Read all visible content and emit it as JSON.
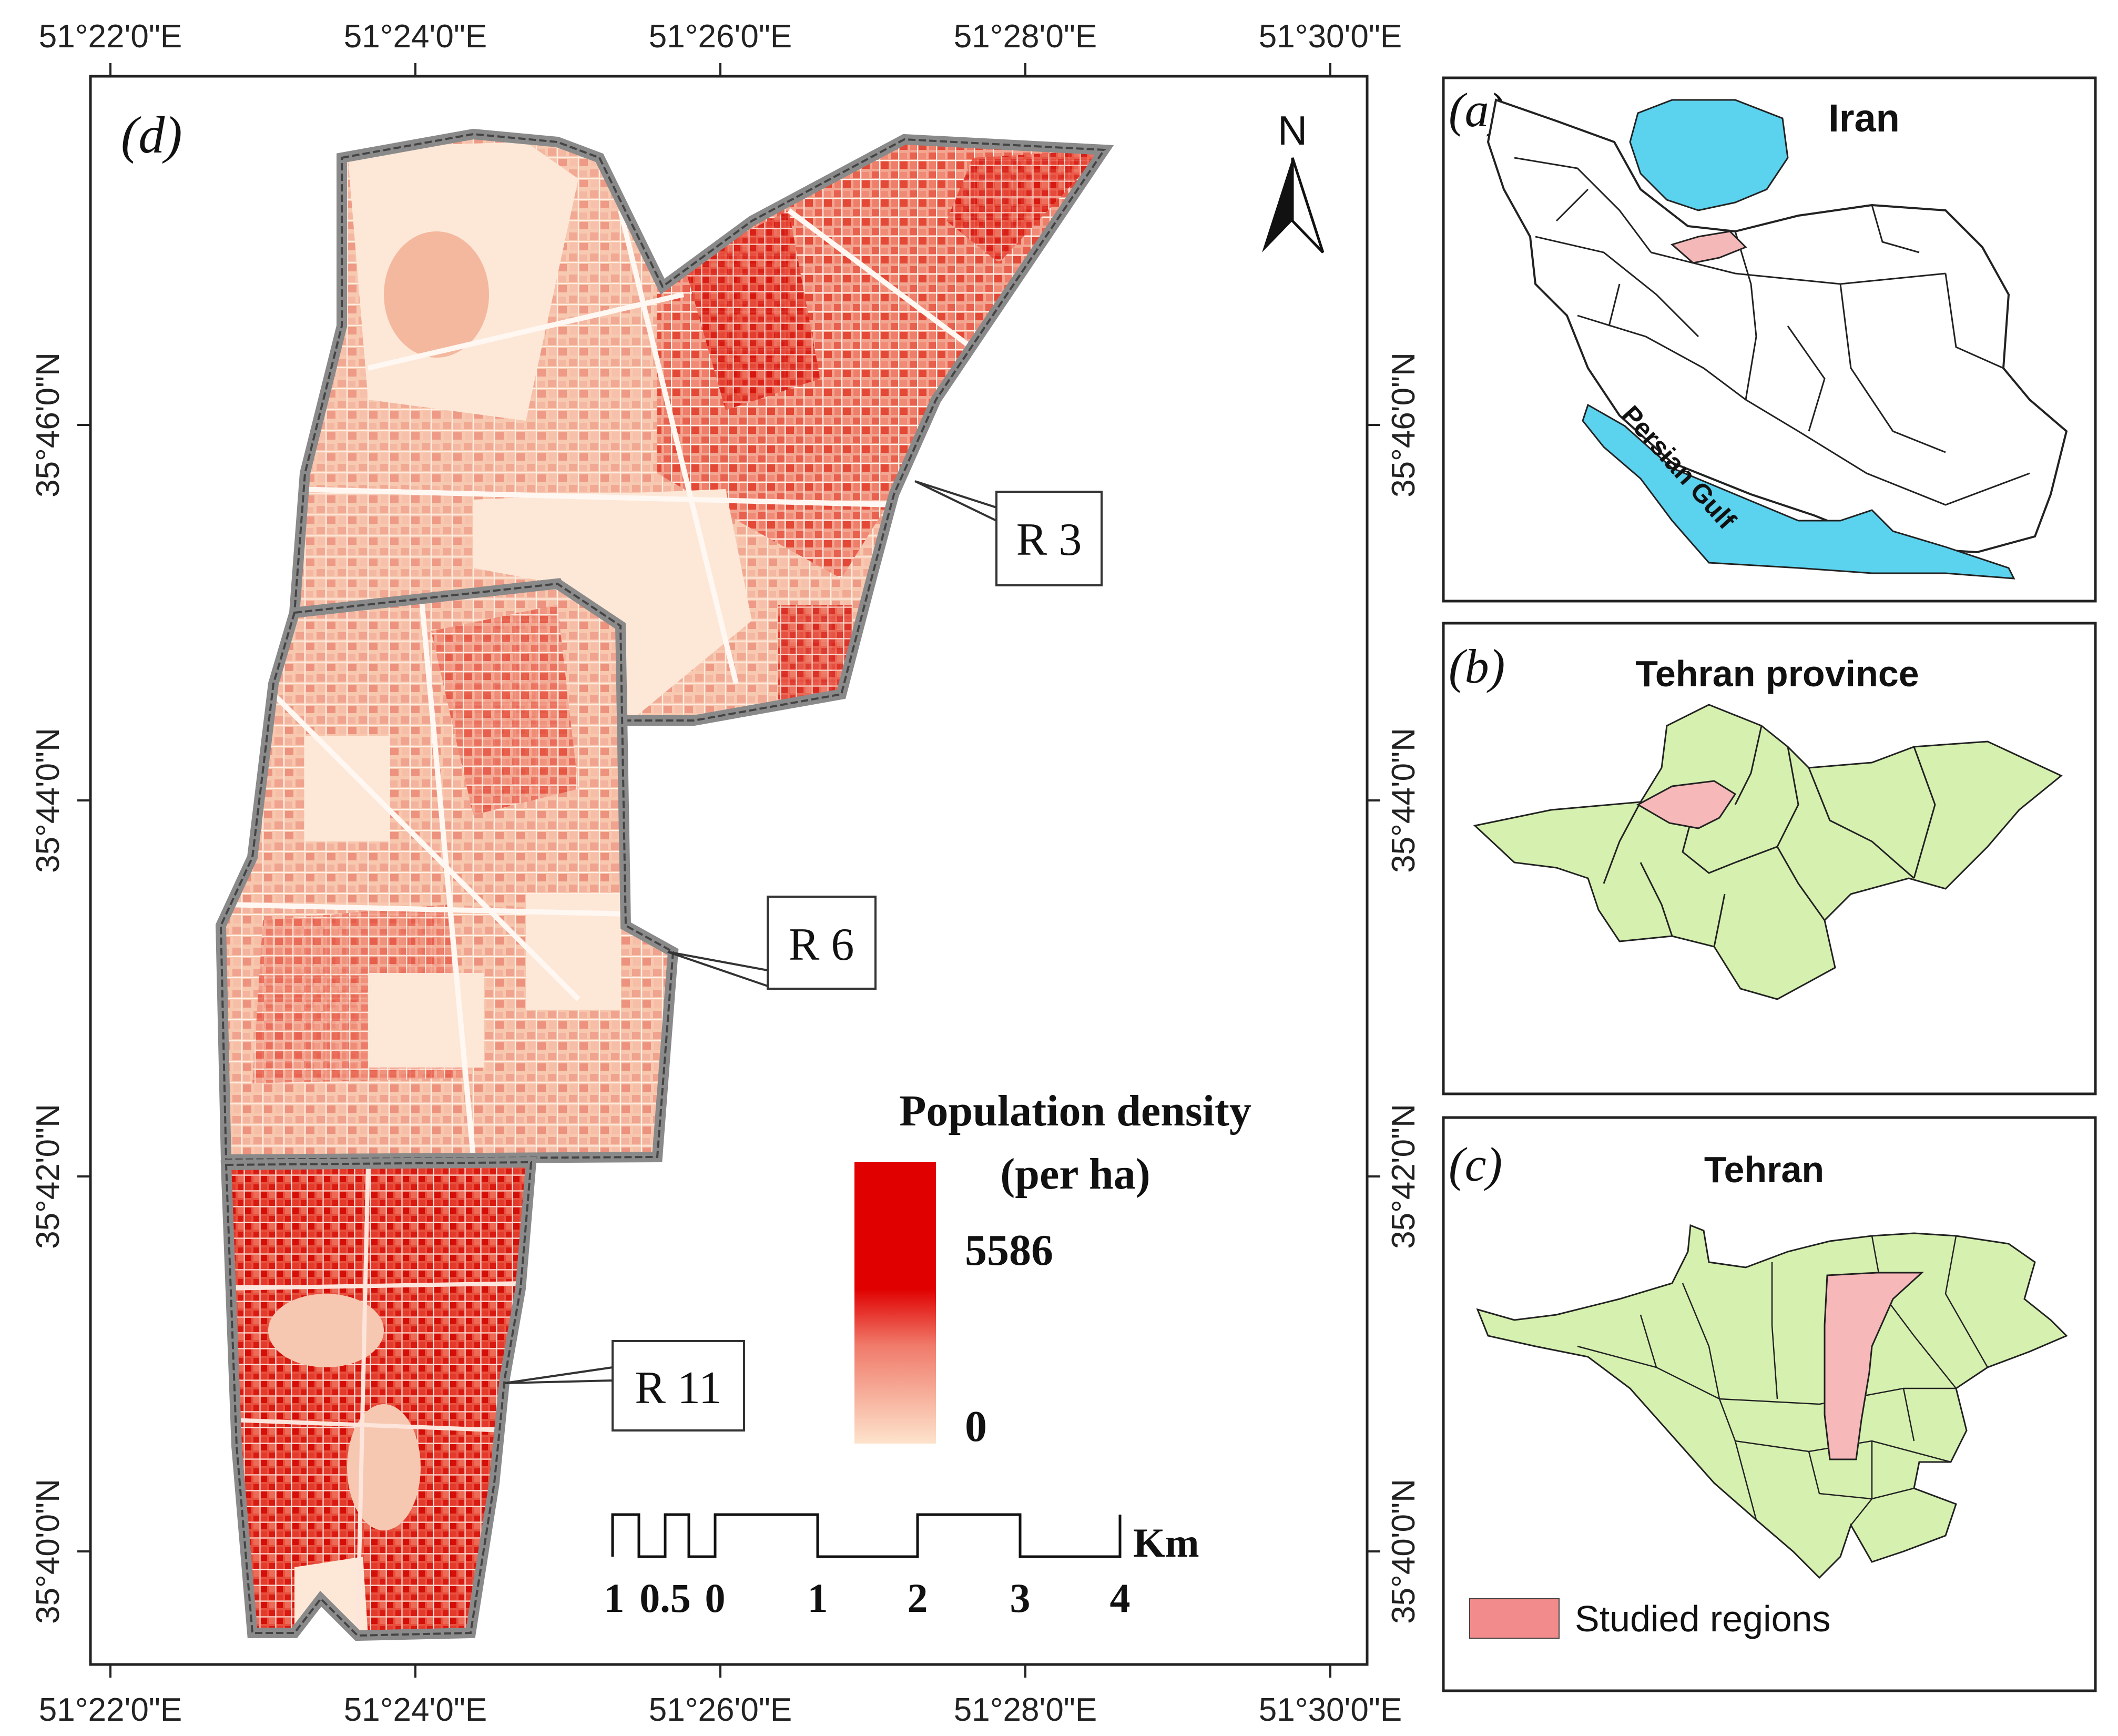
{
  "main_map": {
    "panel_label": "(d)",
    "lon_labels": [
      "51°22'0\"E",
      "51°24'0\"E",
      "51°26'0\"E",
      "51°28'0\"E",
      "51°30'0\"E"
    ],
    "lat_labels": [
      "35°46'0\"N",
      "35°44'0\"N",
      "35°42'0\"N",
      "35°40'0\"N"
    ],
    "north_label": "N",
    "regions": [
      {
        "name": "R 3"
      },
      {
        "name": "R 6"
      },
      {
        "name": "R 11"
      }
    ],
    "legend": {
      "title_line1": "Population density",
      "title_line2": "(per ha)",
      "max_value": "5586",
      "min_value": "0",
      "color_high": "#e00000",
      "color_low": "#fde3cc"
    },
    "scale_bar": {
      "unit": "Km",
      "labels": [
        "1",
        "0.5",
        "0",
        "1",
        "2",
        "3",
        "4"
      ]
    }
  },
  "inset_a": {
    "panel_label": "(a)",
    "title": "Iran",
    "water_label": "Persian Gulf",
    "water_color": "#5bd2ee",
    "highlight_color": "#f4b8b8"
  },
  "inset_b": {
    "panel_label": "(b)",
    "title": "Tehran province",
    "fill_color": "#d6f0b0",
    "highlight_color": "#f6b8b8"
  },
  "inset_c": {
    "panel_label": "(c)",
    "title": "Tehran",
    "legend_label": "Studied regions",
    "legend_color": "#f28b8b"
  }
}
